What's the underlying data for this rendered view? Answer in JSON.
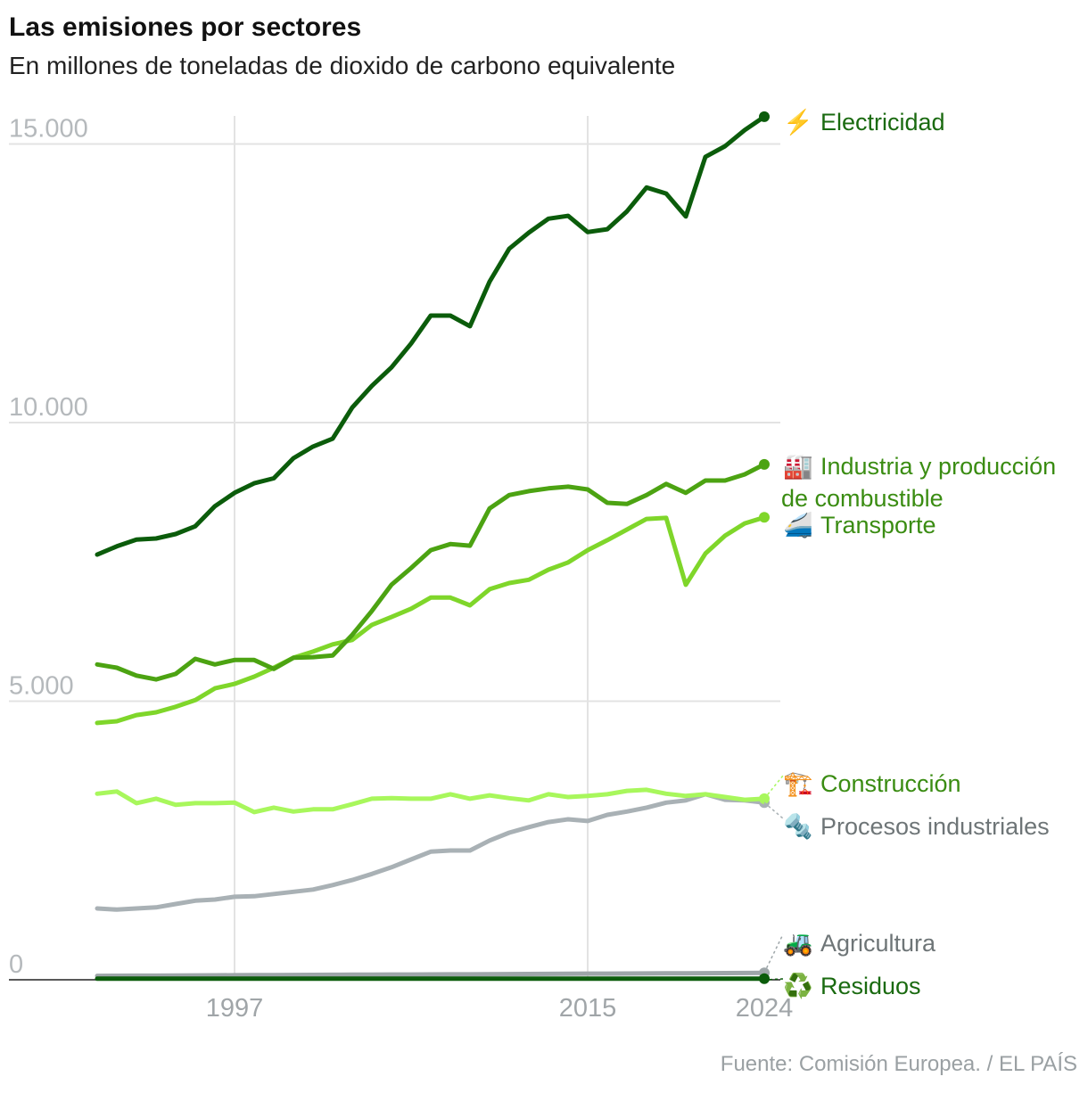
{
  "title": "Las emisiones por sectores",
  "subtitle": "En millones de toneladas de dioxido de carbono equivalente",
  "source": "Fuente: Comisión Europea. / EL PAÍS",
  "chart_data": {
    "type": "line",
    "title": "Las emisiones por sectores",
    "subtitle": "En millones de toneladas de dioxido de carbono equivalente",
    "x": [
      1990,
      1991,
      1992,
      1993,
      1994,
      1995,
      1996,
      1997,
      1998,
      1999,
      2000,
      2001,
      2002,
      2003,
      2004,
      2005,
      2006,
      2007,
      2008,
      2009,
      2010,
      2011,
      2012,
      2013,
      2014,
      2015,
      2016,
      2017,
      2018,
      2019,
      2020,
      2021,
      2022,
      2023,
      2024
    ],
    "xlim": [
      1990,
      2024
    ],
    "ylim": [
      0,
      15500
    ],
    "x_ticks": [
      "1997",
      "2015",
      "2024"
    ],
    "y_ticks": [
      {
        "value": 0,
        "label": "0"
      },
      {
        "value": 5000,
        "label": "5.000"
      },
      {
        "value": 10000,
        "label": "10.000"
      },
      {
        "value": 15000,
        "label": "15.000"
      }
    ],
    "grid": true,
    "legend": "direct labels at right",
    "series": [
      {
        "name": "Electricidad",
        "icon": "lightning-icon",
        "glyph": "⚡",
        "color": "#0b5c0b",
        "label_color": "#1a6a10",
        "values": [
          7630,
          7780,
          7900,
          7920,
          8000,
          8140,
          8500,
          8740,
          8910,
          9000,
          9360,
          9570,
          9710,
          10270,
          10660,
          10990,
          11420,
          11920,
          11920,
          11730,
          12530,
          13120,
          13410,
          13660,
          13710,
          13420,
          13470,
          13790,
          14220,
          14110,
          13700,
          14770,
          14960,
          15250,
          15490
        ]
      },
      {
        "name": "Industria y producción de combustible",
        "label_lines": [
          "Industria y producción",
          "de combustible"
        ],
        "icon": "factory-icon",
        "glyph": "🏭",
        "color": "#4ca312",
        "label_color": "#3a8c12",
        "values": [
          5660,
          5600,
          5460,
          5390,
          5490,
          5760,
          5660,
          5740,
          5740,
          5580,
          5780,
          5790,
          5820,
          6190,
          6620,
          7090,
          7390,
          7710,
          7820,
          7790,
          8460,
          8700,
          8770,
          8820,
          8850,
          8800,
          8560,
          8540,
          8700,
          8900,
          8740,
          8960,
          8960,
          9070,
          9250
        ]
      },
      {
        "name": "Transporte",
        "icon": "train-icon",
        "glyph": "🚄",
        "color": "#7fd62a",
        "label_color": "#3a8c12",
        "values": [
          4610,
          4640,
          4750,
          4800,
          4900,
          5020,
          5230,
          5310,
          5440,
          5600,
          5780,
          5890,
          6020,
          6100,
          6370,
          6510,
          6660,
          6860,
          6860,
          6720,
          7010,
          7120,
          7180,
          7360,
          7490,
          7710,
          7890,
          8080,
          8270,
          8290,
          7090,
          7650,
          7970,
          8190,
          8300
        ]
      },
      {
        "name": "Construcción",
        "icon": "crane-icon",
        "glyph": "🏗️",
        "color": "#a8f75c",
        "label_color": "#3a8c12",
        "values": [
          3340,
          3380,
          3170,
          3250,
          3140,
          3170,
          3170,
          3180,
          3010,
          3090,
          3020,
          3060,
          3060,
          3150,
          3250,
          3260,
          3250,
          3250,
          3330,
          3250,
          3310,
          3260,
          3220,
          3330,
          3280,
          3300,
          3330,
          3390,
          3410,
          3340,
          3300,
          3330,
          3280,
          3230,
          3250
        ]
      },
      {
        "name": "Procesos industriales",
        "icon": "nut-bolt-icon",
        "glyph": "🔩",
        "color": "#a9b1b5",
        "label_color": "#6e7577",
        "values": [
          1280,
          1260,
          1280,
          1300,
          1360,
          1420,
          1440,
          1490,
          1500,
          1540,
          1580,
          1620,
          1700,
          1790,
          1900,
          2020,
          2160,
          2300,
          2320,
          2320,
          2500,
          2640,
          2740,
          2830,
          2880,
          2850,
          2960,
          3020,
          3090,
          3180,
          3220,
          3330,
          3230,
          3220,
          3180
        ]
      },
      {
        "name": "Agricultura",
        "icon": "tractor-icon",
        "glyph": "🚜",
        "color": "#9ea6a9",
        "label_color": "#6e7577",
        "values": [
          70,
          72,
          73,
          74,
          76,
          78,
          80,
          82,
          84,
          85,
          86,
          88,
          90,
          92,
          93,
          94,
          95,
          96,
          97,
          98,
          100,
          102,
          104,
          106,
          108,
          110,
          111,
          112,
          113,
          115,
          116,
          118,
          120,
          122,
          125
        ]
      },
      {
        "name": "Residuos",
        "icon": "recycle-icon",
        "glyph": "♻️",
        "color": "#0b5c0b",
        "label_color": "#1a6a10",
        "values": [
          20,
          20,
          20,
          20,
          20,
          20,
          20,
          20,
          20,
          20,
          20,
          20,
          20,
          20,
          20,
          20,
          20,
          20,
          20,
          20,
          20,
          20,
          20,
          20,
          20,
          20,
          20,
          20,
          20,
          20,
          20,
          20,
          20,
          20,
          20
        ]
      }
    ]
  }
}
